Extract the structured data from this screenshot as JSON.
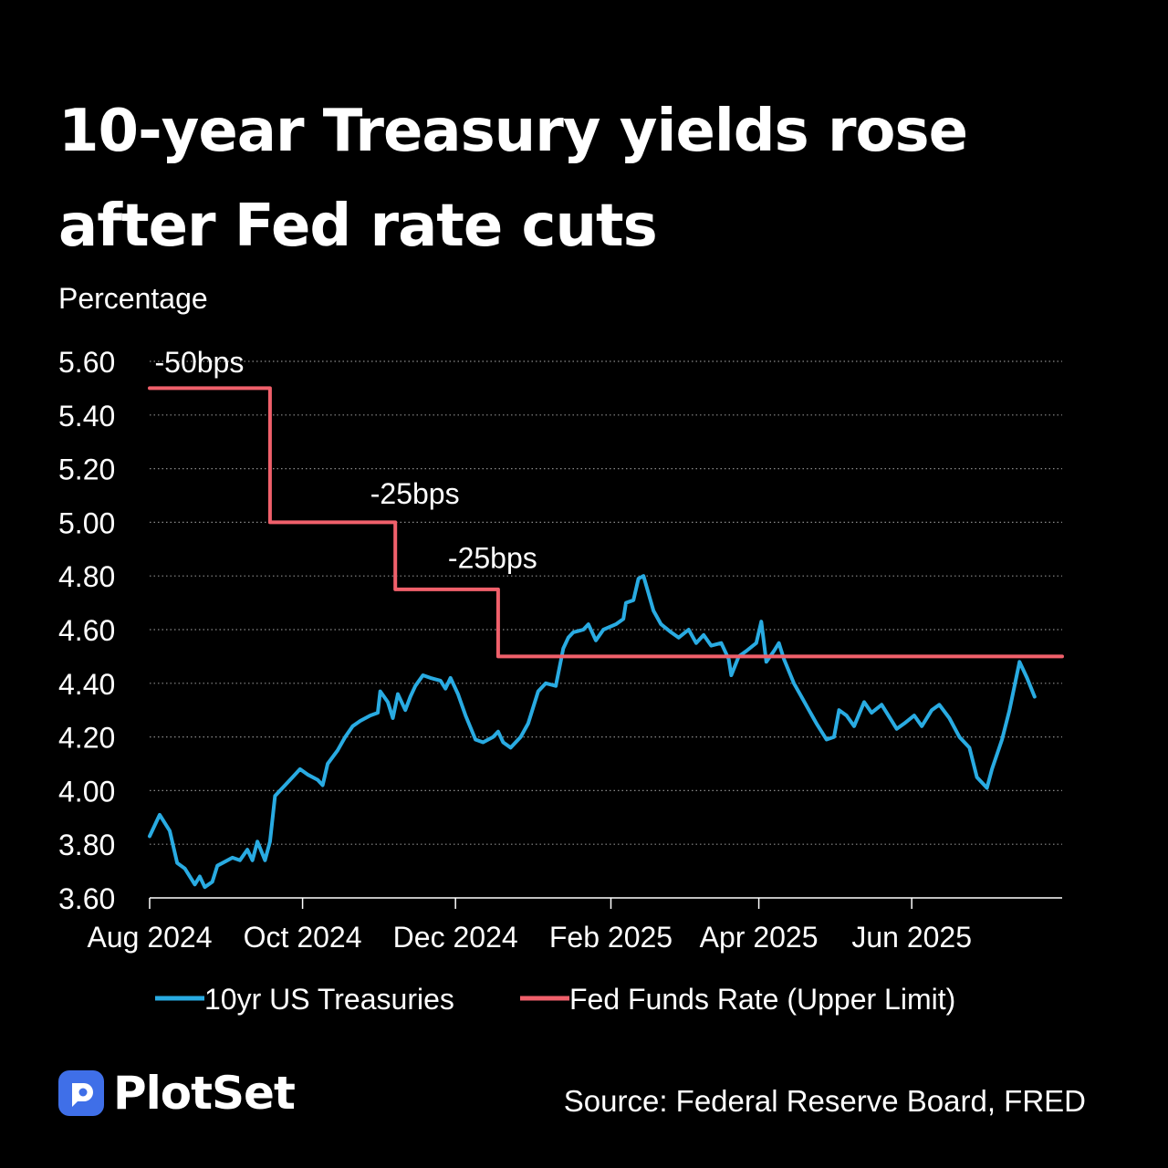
{
  "title_lines": [
    "10-year Treasury yields rose",
    "after Fed rate cuts"
  ],
  "source": "Source: Federal Reserve Board, FRED",
  "brand": "PlotSet",
  "colors": {
    "background": "#000000",
    "treasury": "#29abe2",
    "fedfunds": "#f0606b",
    "text": "#ffffff",
    "grid": "#8a8a8a",
    "brand": "#3f6fe8"
  },
  "chart_data": {
    "type": "line",
    "ylabel": "Percentage",
    "ylim": [
      3.6,
      5.6
    ],
    "yticks": [
      "3.60",
      "3.80",
      "4.00",
      "4.20",
      "4.40",
      "4.60",
      "4.80",
      "5.00",
      "5.20",
      "5.40",
      "5.60"
    ],
    "xrange": [
      "2024-08-01",
      "2025-07-31"
    ],
    "xticks": [
      {
        "date": "2024-08-01",
        "label": "Aug 2024"
      },
      {
        "date": "2024-10-01",
        "label": "Oct 2024"
      },
      {
        "date": "2024-12-01",
        "label": "Dec 2024"
      },
      {
        "date": "2025-02-01",
        "label": "Feb 2025"
      },
      {
        "date": "2025-04-01",
        "label": "Apr 2025"
      },
      {
        "date": "2025-06-01",
        "label": "Jun 2025"
      }
    ],
    "grid": "horizontal dotted",
    "legend": "bottom",
    "series": [
      {
        "name": "10yr US Treasuries",
        "color": "#29abe2",
        "points": [
          [
            "2024-08-01",
            3.83
          ],
          [
            "2024-08-05",
            3.91
          ],
          [
            "2024-08-09",
            3.85
          ],
          [
            "2024-08-12",
            3.73
          ],
          [
            "2024-08-15",
            3.71
          ],
          [
            "2024-08-19",
            3.65
          ],
          [
            "2024-08-21",
            3.68
          ],
          [
            "2024-08-23",
            3.64
          ],
          [
            "2024-08-26",
            3.66
          ],
          [
            "2024-08-28",
            3.72
          ],
          [
            "2024-08-30",
            3.73
          ],
          [
            "2024-09-03",
            3.75
          ],
          [
            "2024-09-06",
            3.74
          ],
          [
            "2024-09-09",
            3.78
          ],
          [
            "2024-09-11",
            3.74
          ],
          [
            "2024-09-13",
            3.81
          ],
          [
            "2024-09-16",
            3.74
          ],
          [
            "2024-09-18",
            3.81
          ],
          [
            "2024-09-20",
            3.98
          ],
          [
            "2024-09-24",
            4.02
          ],
          [
            "2024-09-27",
            4.05
          ],
          [
            "2024-09-30",
            4.08
          ],
          [
            "2024-10-03",
            4.06
          ],
          [
            "2024-10-07",
            4.04
          ],
          [
            "2024-10-09",
            4.02
          ],
          [
            "2024-10-11",
            4.1
          ],
          [
            "2024-10-15",
            4.15
          ],
          [
            "2024-10-18",
            4.2
          ],
          [
            "2024-10-21",
            4.24
          ],
          [
            "2024-10-24",
            4.26
          ],
          [
            "2024-10-28",
            4.28
          ],
          [
            "2024-10-31",
            4.29
          ],
          [
            "2024-11-01",
            4.37
          ],
          [
            "2024-11-04",
            4.33
          ],
          [
            "2024-11-06",
            4.27
          ],
          [
            "2024-11-08",
            4.36
          ],
          [
            "2024-11-11",
            4.3
          ],
          [
            "2024-11-13",
            4.35
          ],
          [
            "2024-11-15",
            4.39
          ],
          [
            "2024-11-18",
            4.43
          ],
          [
            "2024-11-21",
            4.42
          ],
          [
            "2024-11-25",
            4.41
          ],
          [
            "2024-11-27",
            4.38
          ],
          [
            "2024-11-29",
            4.42
          ],
          [
            "2024-12-02",
            4.36
          ],
          [
            "2024-12-05",
            4.28
          ],
          [
            "2024-12-09",
            4.19
          ],
          [
            "2024-12-12",
            4.18
          ],
          [
            "2024-12-16",
            4.2
          ],
          [
            "2024-12-18",
            4.22
          ],
          [
            "2024-12-20",
            4.18
          ],
          [
            "2024-12-23",
            4.16
          ],
          [
            "2024-12-27",
            4.2
          ],
          [
            "2024-12-30",
            4.25
          ],
          [
            "2025-01-03",
            4.37
          ],
          [
            "2025-01-06",
            4.4
          ],
          [
            "2025-01-10",
            4.39
          ],
          [
            "2025-01-13",
            4.53
          ],
          [
            "2025-01-15",
            4.57
          ],
          [
            "2025-01-17",
            4.59
          ],
          [
            "2025-01-21",
            4.6
          ],
          [
            "2025-01-23",
            4.62
          ],
          [
            "2025-01-26",
            4.56
          ],
          [
            "2025-01-29",
            4.6
          ],
          [
            "2025-02-03",
            4.62
          ],
          [
            "2025-02-06",
            4.64
          ],
          [
            "2025-02-07",
            4.7
          ],
          [
            "2025-02-10",
            4.71
          ],
          [
            "2025-02-12",
            4.79
          ],
          [
            "2025-02-14",
            4.8
          ],
          [
            "2025-02-18",
            4.67
          ],
          [
            "2025-02-21",
            4.62
          ],
          [
            "2025-02-25",
            4.59
          ],
          [
            "2025-02-28",
            4.57
          ],
          [
            "2025-03-04",
            4.6
          ],
          [
            "2025-03-07",
            4.55
          ],
          [
            "2025-03-10",
            4.58
          ],
          [
            "2025-03-13",
            4.54
          ],
          [
            "2025-03-17",
            4.55
          ],
          [
            "2025-03-20",
            4.49
          ],
          [
            "2025-03-21",
            4.43
          ],
          [
            "2025-03-24",
            4.5
          ],
          [
            "2025-03-27",
            4.52
          ],
          [
            "2025-03-31",
            4.55
          ],
          [
            "2025-04-02",
            4.63
          ],
          [
            "2025-04-04",
            4.48
          ],
          [
            "2025-04-07",
            4.52
          ],
          [
            "2025-04-09",
            4.55
          ],
          [
            "2025-04-11",
            4.49
          ],
          [
            "2025-04-15",
            4.4
          ],
          [
            "2025-04-18",
            4.35
          ],
          [
            "2025-04-21",
            4.3
          ],
          [
            "2025-04-24",
            4.25
          ],
          [
            "2025-04-28",
            4.19
          ],
          [
            "2025-05-01",
            4.2
          ],
          [
            "2025-05-03",
            4.3
          ],
          [
            "2025-05-06",
            4.28
          ],
          [
            "2025-05-09",
            4.24
          ],
          [
            "2025-05-13",
            4.33
          ],
          [
            "2025-05-16",
            4.29
          ],
          [
            "2025-05-20",
            4.32
          ],
          [
            "2025-05-22",
            4.29
          ],
          [
            "2025-05-26",
            4.23
          ],
          [
            "2025-05-29",
            4.25
          ],
          [
            "2025-06-02",
            4.28
          ],
          [
            "2025-06-05",
            4.24
          ],
          [
            "2025-06-09",
            4.3
          ],
          [
            "2025-06-12",
            4.32
          ],
          [
            "2025-06-16",
            4.27
          ],
          [
            "2025-06-20",
            4.2
          ],
          [
            "2025-06-24",
            4.16
          ],
          [
            "2025-06-27",
            4.05
          ],
          [
            "2025-07-01",
            4.01
          ],
          [
            "2025-07-03",
            4.08
          ],
          [
            "2025-07-07",
            4.19
          ],
          [
            "2025-07-10",
            4.3
          ],
          [
            "2025-07-14",
            4.48
          ],
          [
            "2025-07-17",
            4.42
          ],
          [
            "2025-07-20",
            4.35
          ]
        ]
      },
      {
        "name": "Fed Funds Rate (Upper Limit)",
        "color": "#f0606b",
        "points": [
          [
            "2024-08-01",
            5.5
          ],
          [
            "2024-09-18",
            5.5
          ],
          [
            "2024-09-18",
            5.0
          ],
          [
            "2024-11-07",
            5.0
          ],
          [
            "2024-11-07",
            4.75
          ],
          [
            "2024-12-18",
            4.75
          ],
          [
            "2024-12-18",
            4.5
          ],
          [
            "2025-07-31",
            4.5
          ]
        ]
      }
    ],
    "annotations": [
      {
        "text": "-50bps",
        "date": "2024-08-03",
        "y": 5.6
      },
      {
        "text": "-25bps",
        "date": "2024-10-28",
        "y": 5.11
      },
      {
        "text": "-25bps",
        "date": "2024-11-28",
        "y": 4.87
      }
    ]
  }
}
